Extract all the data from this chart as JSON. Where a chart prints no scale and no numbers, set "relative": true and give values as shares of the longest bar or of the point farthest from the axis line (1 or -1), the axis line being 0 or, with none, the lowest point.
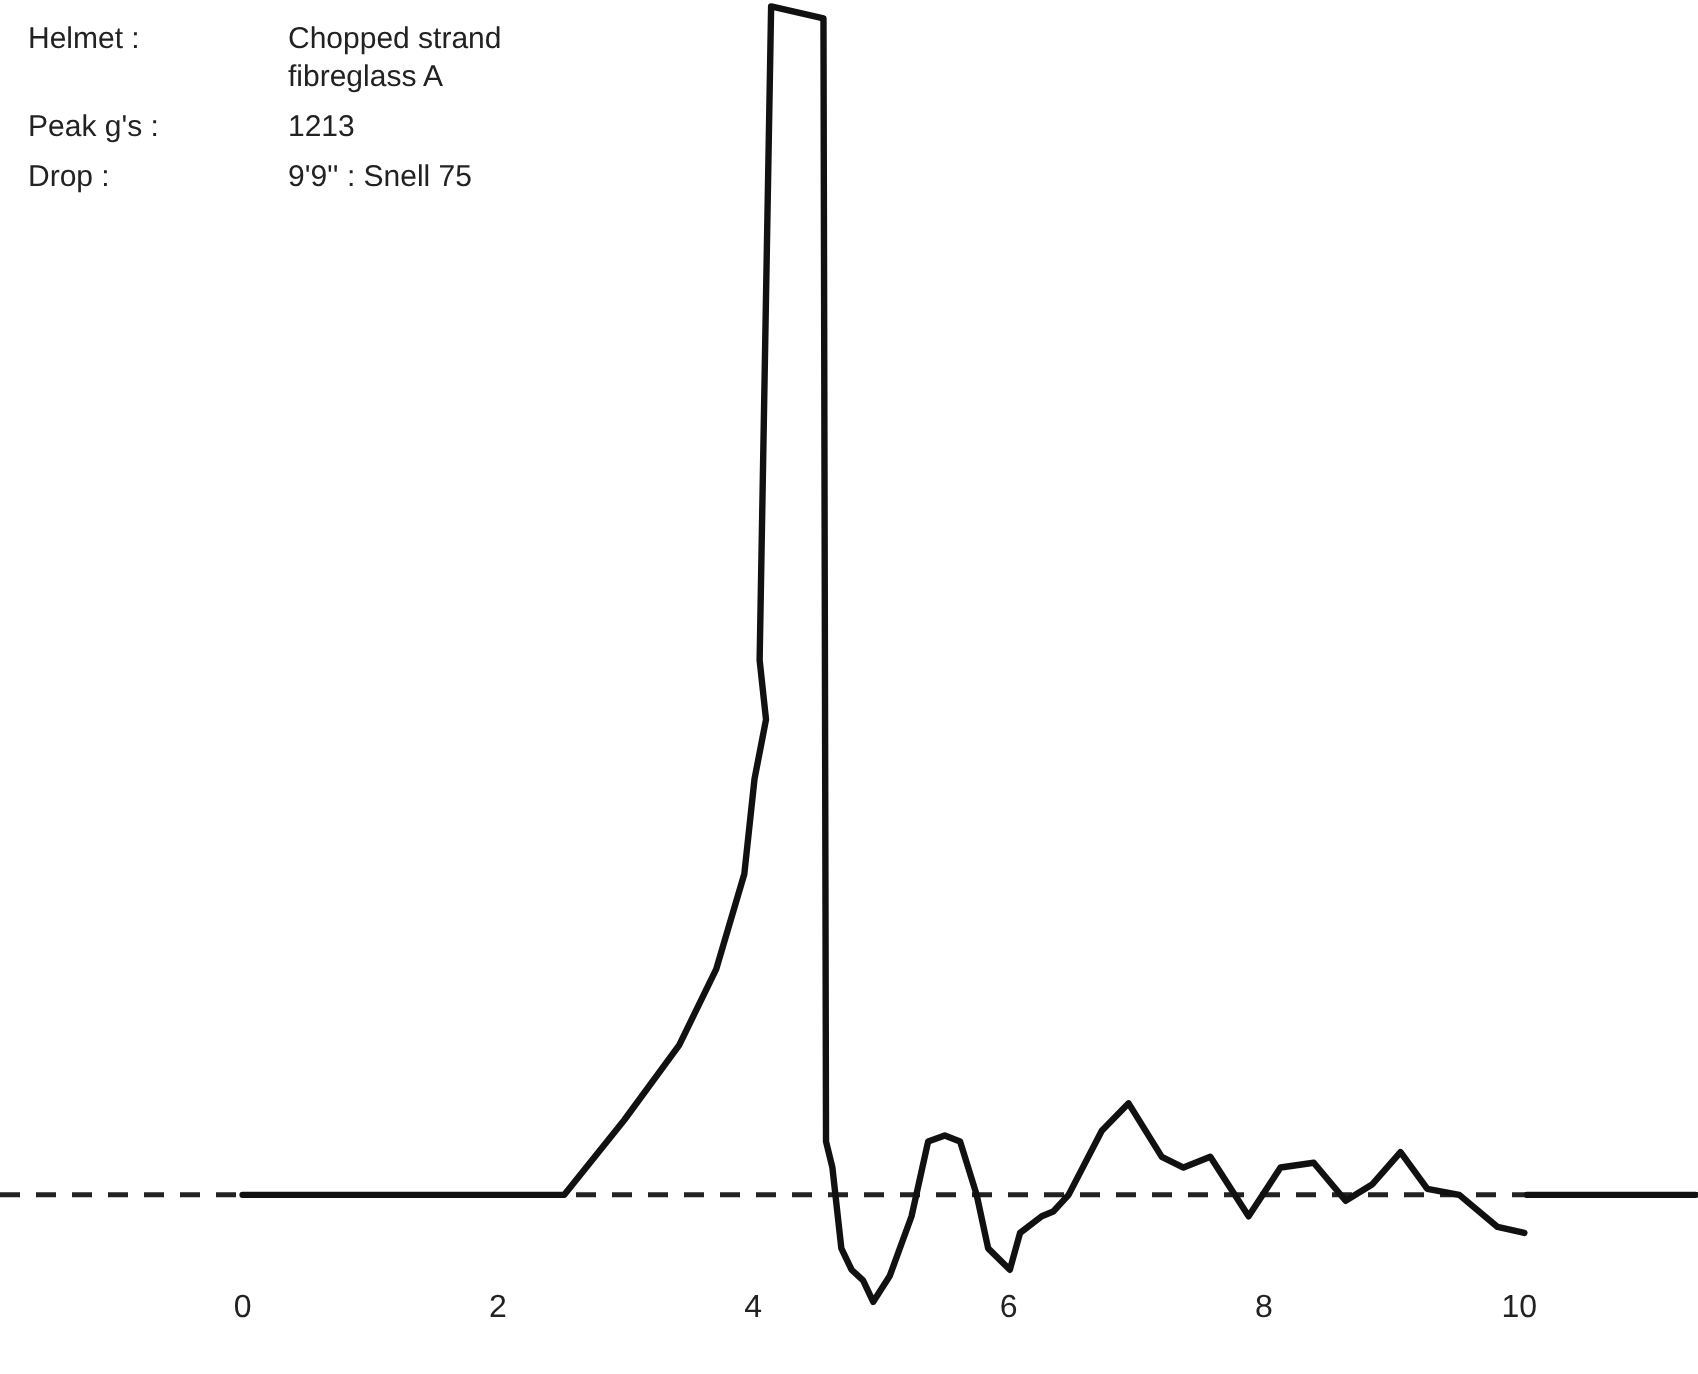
{
  "chart_data": {
    "type": "line",
    "relative": true,
    "color": "#111111",
    "line_style": "solid",
    "marker": "none",
    "grid": false,
    "legend": false,
    "annotations": [
      "Helmet : Chopped strand fibreglass A",
      "Peak g's : 1213",
      "Drop : 9'9'' : Snell 75"
    ],
    "xlim": [
      -1.9,
      11.4
    ],
    "ref_lines": [
      {
        "axis": "y",
        "value": 0,
        "line_style": "dashed"
      }
    ],
    "xticks": [
      0,
      2,
      4,
      6,
      8,
      10
    ],
    "x": [
      0,
      2.52,
      2.99,
      3.42,
      3.71,
      3.93,
      4.01,
      4.1,
      4.05,
      4.14,
      4.55,
      4.57,
      4.62,
      4.69,
      4.77,
      4.86,
      4.94,
      5.07,
      5.24,
      5.37,
      5.5,
      5.62,
      5.75,
      5.84,
      6.01,
      6.09,
      6.26,
      6.35,
      6.47,
      6.73,
      6.94,
      7.2,
      7.37,
      7.58,
      7.88,
      8.13,
      8.39,
      8.64,
      8.85,
      9.07,
      9.28,
      9.53,
      9.83,
      10.04,
      10.05,
      10.06,
      11.38
    ],
    "values": [
      0,
      0,
      0.063,
      0.126,
      0.19,
      0.27,
      0.35,
      0.4,
      0.45,
      1,
      0.99,
      0.045,
      0.023,
      -0.045,
      -0.063,
      -0.072,
      -0.09,
      -0.068,
      -0.018,
      0.045,
      0.05,
      0.045,
      0,
      -0.045,
      -0.063,
      -0.032,
      -0.018,
      -0.014,
      0,
      0.054,
      0.077,
      0.032,
      0.023,
      0.032,
      -0.018,
      0.023,
      0.027,
      -0.005,
      0.009,
      0.036,
      0.005,
      0,
      -0.027,
      -0.032,
      null,
      0,
      0
    ]
  }
}
